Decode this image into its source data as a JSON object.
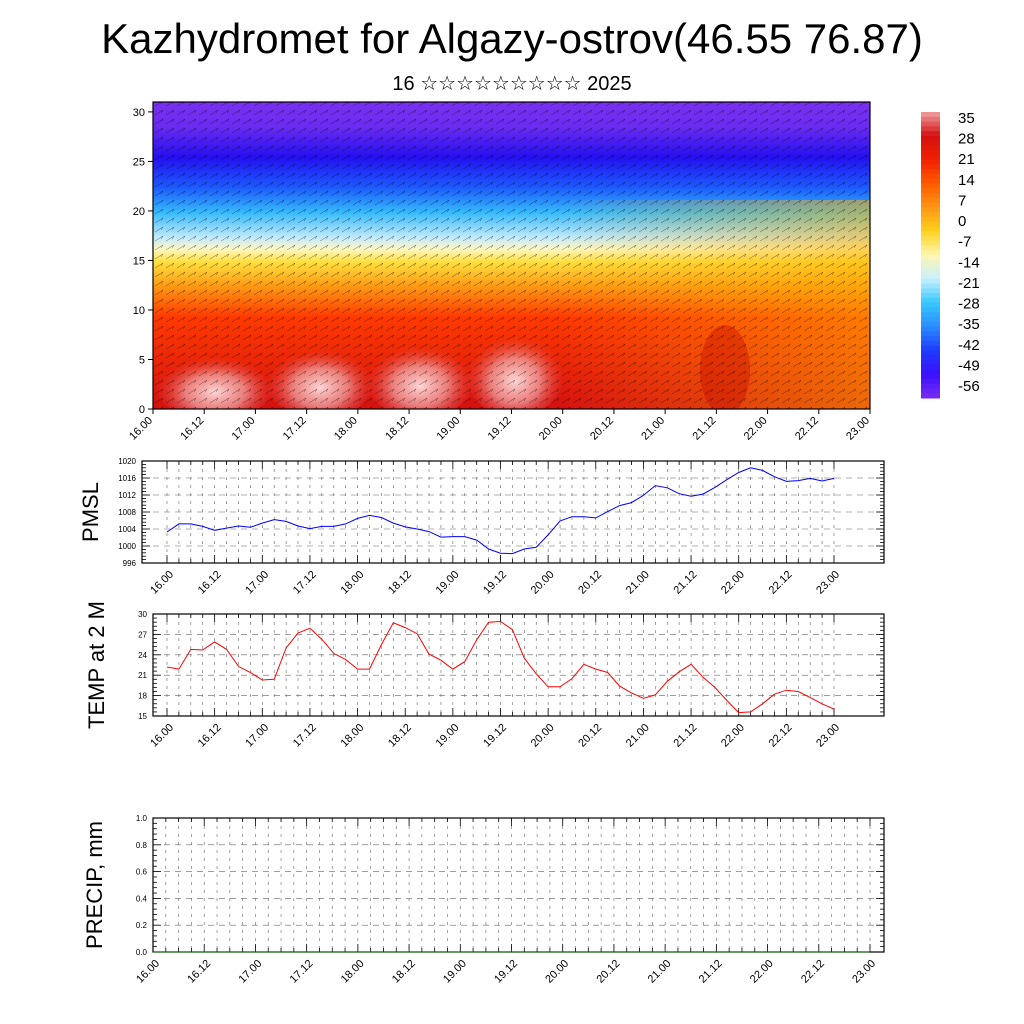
{
  "title": "Kazhydromet for Algazy-ostrov(46.55 76.87)",
  "subtitle": "16 ☆☆☆☆☆☆☆☆☆ 2025",
  "colors": {
    "pmsl_line": "#0000ff",
    "temp_line": "#ff0000",
    "precip_line": "#006400",
    "colormap": [
      "#7a2cf0",
      "#3a10ff",
      "#1e3cff",
      "#2a8cff",
      "#36c8ff",
      "#c8f0ff",
      "#fff5b0",
      "#ffd21e",
      "#ff9614",
      "#ff5a00",
      "#f02000",
      "#d41010",
      "#f0a0a0"
    ]
  },
  "chart_data": [
    {
      "type": "heatmap",
      "x_tick_labels": [
        "16.00",
        "16.12",
        "17.00",
        "17.12",
        "18.00",
        "18.12",
        "19.00",
        "19.12",
        "20.00",
        "20.12",
        "21.00",
        "21.12",
        "22.00",
        "22.12",
        "23.00"
      ],
      "y_ticks": [
        0,
        5,
        10,
        15,
        20,
        25,
        30
      ],
      "ylim": [
        0,
        31
      ],
      "colorbar_labels": [
        "35",
        "28",
        "21",
        "14",
        "7",
        "0",
        "-7",
        "-14",
        "-21",
        "-28",
        "-35",
        "-42",
        "-49",
        "-56"
      ],
      "value_range": [
        -63,
        40
      ]
    },
    {
      "type": "line",
      "ylabel": "PMSL",
      "x_tick_labels": [
        "16.00",
        "16.12",
        "17.00",
        "17.12",
        "18.00",
        "18.12",
        "19.00",
        "19.12",
        "20.00",
        "20.12",
        "21.00",
        "21.12",
        "22.00",
        "22.12",
        "23.00"
      ],
      "y_ticks": [
        996,
        1000,
        1004,
        1008,
        1012,
        1016,
        1020
      ],
      "ylim": [
        996,
        1020
      ],
      "x": [
        0,
        3,
        6,
        9,
        12,
        15,
        18,
        21,
        24,
        27,
        30,
        33,
        36,
        39,
        42,
        45,
        48,
        51,
        54,
        57,
        60,
        63,
        66,
        69,
        72,
        75,
        78,
        81,
        84,
        87,
        90,
        93,
        96,
        99,
        102,
        105,
        108,
        111,
        114,
        117,
        120,
        123,
        126,
        129,
        132,
        135,
        138,
        141,
        144,
        147,
        150,
        153,
        156,
        159,
        162,
        165,
        168
      ],
      "series": [
        {
          "values": [
            1003.3,
            1005.2,
            1005.2,
            1004.6,
            1003.7,
            1004.2,
            1004.7,
            1004.4,
            1005.4,
            1006.2,
            1005.8,
            1004.7,
            1004.1,
            1004.6,
            1004.6,
            1005.2,
            1006.5,
            1007.2,
            1006.7,
            1005.4,
            1004.5,
            1004.0,
            1003.4,
            1002.1,
            1002.2,
            1002.2,
            1001.4,
            999.3,
            998.3,
            998.2,
            999.3,
            999.7,
            1002.6,
            1005.9,
            1006.9,
            1006.9,
            1006.6,
            1008.1,
            1009.5,
            1010.2,
            1011.9,
            1014.2,
            1013.7,
            1012.3,
            1011.7,
            1012.2,
            1013.8,
            1015.6,
            1017.3,
            1018.4,
            1017.8,
            1016.3,
            1015.2,
            1015.4,
            1015.9,
            1015.3,
            1015.9
          ]
        }
      ]
    },
    {
      "type": "line",
      "ylabel": "TEMP at 2 M",
      "x_tick_labels": [
        "16.00",
        "16.12",
        "17.00",
        "17.12",
        "18.00",
        "18.12",
        "19.00",
        "19.12",
        "20.00",
        "20.12",
        "21.00",
        "21.12",
        "22.00",
        "22.12",
        "23.00"
      ],
      "y_ticks": [
        15,
        18,
        21,
        24,
        27,
        30
      ],
      "ylim": [
        15,
        30
      ],
      "x": [
        0,
        3,
        6,
        9,
        12,
        15,
        18,
        21,
        24,
        27,
        30,
        33,
        36,
        39,
        42,
        45,
        48,
        51,
        54,
        57,
        60,
        63,
        66,
        69,
        72,
        75,
        78,
        81,
        84,
        87,
        90,
        93,
        96,
        99,
        102,
        105,
        108,
        111,
        114,
        117,
        120,
        123,
        126,
        129,
        132,
        135,
        138,
        141,
        144,
        147,
        150,
        153,
        156,
        159,
        162,
        165,
        168
      ],
      "series": [
        {
          "values": [
            22.2,
            21.9,
            24.8,
            24.7,
            25.9,
            24.8,
            22.3,
            21.4,
            20.3,
            20.4,
            25.0,
            27.2,
            27.9,
            26.3,
            24.2,
            23.3,
            21.9,
            21.9,
            25.5,
            28.7,
            28.0,
            27.1,
            24.1,
            23.2,
            21.9,
            23.0,
            26.2,
            28.8,
            28.9,
            27.7,
            23.5,
            21.2,
            19.3,
            19.3,
            20.5,
            22.6,
            21.9,
            21.4,
            19.4,
            18.4,
            17.6,
            18.1,
            20.1,
            21.5,
            22.6,
            20.7,
            19.2,
            17.3,
            15.5,
            15.6,
            16.8,
            18.2,
            18.8,
            18.6,
            17.7,
            16.8,
            16.0
          ]
        }
      ]
    },
    {
      "type": "line",
      "ylabel": "PRECIP, mm",
      "x_tick_labels": [
        "16.00",
        "16.12",
        "17.00",
        "17.12",
        "18.00",
        "18.12",
        "19.00",
        "19.12",
        "20.00",
        "20.12",
        "21.00",
        "21.12",
        "22.00",
        "22.12",
        "23.00"
      ],
      "y_ticks": [
        "0.0",
        "0.2",
        "0.4",
        "0.6",
        "0.8",
        "1.0"
      ],
      "ylim": [
        0,
        1
      ],
      "x": [
        0,
        168
      ],
      "series": [
        {
          "values": [
            0,
            0
          ]
        }
      ]
    }
  ]
}
